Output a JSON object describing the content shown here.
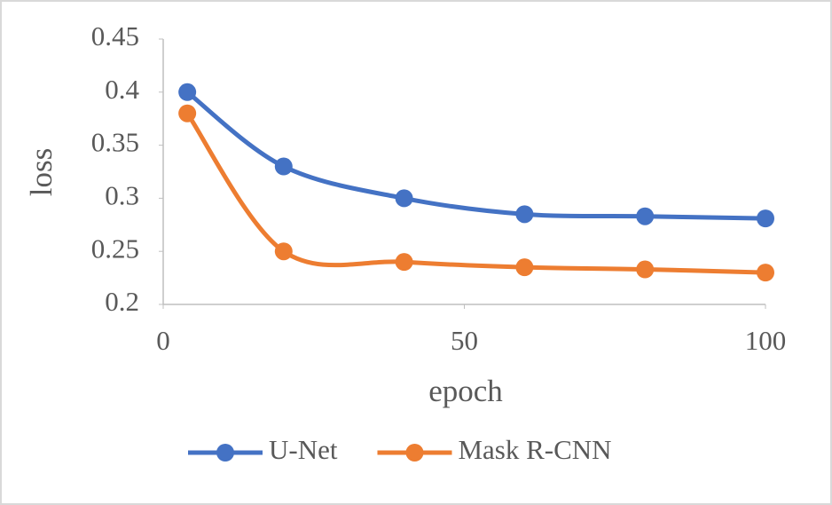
{
  "chart_data": {
    "type": "line",
    "smooth": true,
    "x_label": "epoch",
    "y_label": "loss",
    "x": [
      4,
      20,
      40,
      60,
      80,
      100
    ],
    "series": [
      {
        "name": "U-Net",
        "color": "#4472c4",
        "values": [
          0.4,
          0.33,
          0.3,
          0.285,
          0.283,
          0.281
        ]
      },
      {
        "name": "Mask R-CNN",
        "color": "#ed7d31",
        "values": [
          0.38,
          0.25,
          0.24,
          0.235,
          0.233,
          0.23
        ]
      }
    ],
    "xlim": [
      0,
      100
    ],
    "xticks": [
      0,
      50,
      100
    ],
    "ylim": [
      0.2,
      0.45
    ],
    "yticks": [
      0.2,
      0.25,
      0.3,
      0.35,
      0.4,
      0.45
    ],
    "grid": false,
    "legend": "bottom"
  }
}
